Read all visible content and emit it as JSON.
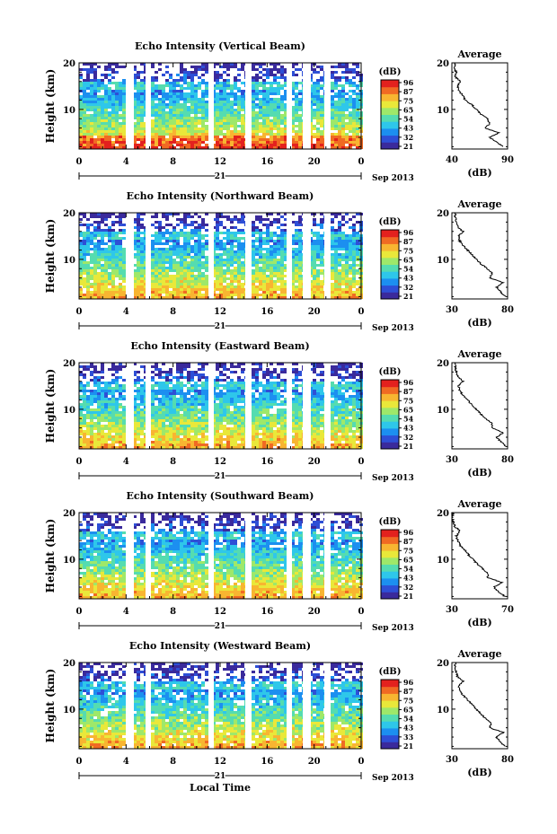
{
  "chart_data": [
    {
      "type": "heatmap",
      "title": "Echo Intensity (Vertical Beam)",
      "ylabel": "Height (km)",
      "ylim": [
        1.5,
        20
      ],
      "yticks": [
        "10",
        "20"
      ],
      "xlim": [
        0,
        24
      ],
      "xticks": [
        "0",
        "4",
        "8",
        "12",
        "16",
        "20",
        "0"
      ],
      "date_day": "21",
      "date_label": "Sep 2013",
      "colorbar": {
        "unit": "(dB)",
        "ticks": [
          "96",
          "87",
          "75",
          "65",
          "54",
          "43",
          "32",
          "21"
        ]
      },
      "profile": {
        "title": "Average",
        "xlabel": "(dB)",
        "xticks": [
          "40",
          "90"
        ],
        "xlim": [
          40,
          90
        ],
        "ylim": [
          1.5,
          20
        ],
        "yticks": [
          "10",
          "20"
        ],
        "heights": [
          2,
          3,
          4,
          5,
          6,
          7,
          8,
          9,
          10,
          11,
          12,
          13,
          14,
          15,
          16,
          17,
          18,
          19,
          20
        ],
        "values": [
          86,
          80,
          74,
          82,
          70,
          74,
          72,
          66,
          62,
          58,
          52,
          50,
          46,
          45,
          48,
          43,
          44,
          42,
          43
        ]
      }
    },
    {
      "type": "heatmap",
      "title": "Echo Intensity (Northward Beam)",
      "ylabel": "Height (km)",
      "ylim": [
        1.5,
        20
      ],
      "yticks": [
        "10",
        "20"
      ],
      "xlim": [
        0,
        24
      ],
      "xticks": [
        "0",
        "4",
        "8",
        "12",
        "16",
        "20",
        "0"
      ],
      "date_day": "21",
      "date_label": "Sep 2013",
      "colorbar": {
        "unit": "(dB)",
        "ticks": [
          "96",
          "87",
          "75",
          "65",
          "54",
          "43",
          "32",
          "21"
        ]
      },
      "profile": {
        "title": "Average",
        "xlabel": "(dB)",
        "xticks": [
          "30",
          "80"
        ],
        "xlim": [
          30,
          80
        ],
        "ylim": [
          1.5,
          20
        ],
        "yticks": [
          "10",
          "20"
        ],
        "heights": [
          2,
          3,
          4,
          5,
          6,
          7,
          8,
          9,
          10,
          11,
          12,
          13,
          14,
          15,
          16,
          17,
          18,
          19,
          20
        ],
        "values": [
          78,
          74,
          70,
          76,
          64,
          66,
          62,
          56,
          52,
          48,
          44,
          40,
          37,
          36,
          40,
          35,
          34,
          33,
          33
        ]
      }
    },
    {
      "type": "heatmap",
      "title": "Echo Intensity (Eastward Beam)",
      "ylabel": "Height (km)",
      "ylim": [
        1.5,
        20
      ],
      "yticks": [
        "10",
        "20"
      ],
      "xlim": [
        0,
        24
      ],
      "xticks": [
        "0",
        "4",
        "8",
        "12",
        "16",
        "20",
        "0"
      ],
      "date_day": "21",
      "date_label": "Sep 2013",
      "colorbar": {
        "unit": "(dB)",
        "ticks": [
          "96",
          "87",
          "75",
          "65",
          "54",
          "43",
          "32",
          "21"
        ]
      },
      "profile": {
        "title": "Average",
        "xlabel": "(dB)",
        "xticks": [
          "30",
          "80"
        ],
        "xlim": [
          30,
          80
        ],
        "ylim": [
          1.5,
          20
        ],
        "yticks": [
          "10",
          "20"
        ],
        "heights": [
          2,
          3,
          4,
          5,
          6,
          7,
          8,
          9,
          10,
          11,
          12,
          13,
          14,
          15,
          16,
          17,
          18,
          19,
          20
        ],
        "values": [
          79,
          74,
          70,
          76,
          66,
          66,
          60,
          56,
          52,
          48,
          44,
          40,
          37,
          36,
          40,
          35,
          34,
          33,
          33
        ]
      }
    },
    {
      "type": "heatmap",
      "title": "Echo Intensity (Southward Beam)",
      "ylabel": "Height (km)",
      "ylim": [
        1.5,
        20
      ],
      "yticks": [
        "10",
        "20"
      ],
      "xlim": [
        0,
        24
      ],
      "xticks": [
        "0",
        "4",
        "8",
        "12",
        "16",
        "20",
        "0"
      ],
      "date_day": "21",
      "date_label": "Sep 2013",
      "colorbar": {
        "unit": "(dB)",
        "ticks": [
          "96",
          "87",
          "75",
          "65",
          "54",
          "43",
          "32",
          "21"
        ]
      },
      "profile": {
        "title": "Average",
        "xlabel": "(dB)",
        "xticks": [
          "30",
          "70"
        ],
        "xlim": [
          30,
          70
        ],
        "ylim": [
          1.5,
          20
        ],
        "yticks": [
          "10",
          "20"
        ],
        "heights": [
          2,
          3,
          4,
          5,
          6,
          7,
          8,
          9,
          10,
          11,
          12,
          13,
          14,
          15,
          16,
          17,
          18,
          19,
          20
        ],
        "values": [
          68,
          64,
          60,
          66,
          56,
          56,
          52,
          48,
          45,
          42,
          39,
          36,
          34,
          33,
          36,
          32,
          31,
          30,
          31
        ]
      }
    },
    {
      "type": "heatmap",
      "title": "Echo Intensity (Westward Beam)",
      "ylabel": "Height (km)",
      "xlabel": "Local Time",
      "ylim": [
        1.5,
        20
      ],
      "yticks": [
        "10",
        "20"
      ],
      "xlim": [
        0,
        24
      ],
      "xticks": [
        "0",
        "4",
        "8",
        "12",
        "16",
        "20",
        "0"
      ],
      "date_day": "21",
      "date_label": "Sep 2013",
      "colorbar": {
        "unit": "(dB)",
        "ticks": [
          "96",
          "87",
          "75",
          "65",
          "54",
          "43",
          "33",
          "21"
        ]
      },
      "profile": {
        "title": "Average",
        "xlabel": "(dB)",
        "xticks": [
          "30",
          "80"
        ],
        "xlim": [
          30,
          80
        ],
        "ylim": [
          1.5,
          20
        ],
        "yticks": [
          "10",
          "20"
        ],
        "heights": [
          2,
          3,
          4,
          5,
          6,
          7,
          8,
          9,
          10,
          11,
          12,
          13,
          14,
          15,
          16,
          17,
          18,
          19,
          20
        ],
        "values": [
          78,
          73,
          70,
          76,
          64,
          65,
          60,
          56,
          52,
          48,
          44,
          40,
          37,
          36,
          40,
          35,
          34,
          33,
          33
        ]
      }
    }
  ],
  "colors": {
    "colormap": [
      "#3a2a9c",
      "#2e4fd6",
      "#1c8ff0",
      "#2ec7ea",
      "#55dcb0",
      "#9ee86a",
      "#e9e83a",
      "#f8b531",
      "#f06a23",
      "#e3211e"
    ],
    "axis": "#000000",
    "gap": "#ffffff"
  }
}
